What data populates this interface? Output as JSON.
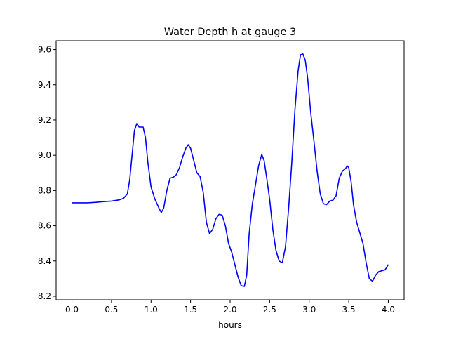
{
  "chart_data": {
    "type": "line",
    "title": "Water Depth h at gauge 3",
    "xlabel": "hours",
    "ylabel": "",
    "xlim": [
      -0.2,
      4.2
    ],
    "ylim": [
      8.18,
      9.65
    ],
    "x_ticks": [
      0.0,
      0.5,
      1.0,
      1.5,
      2.0,
      2.5,
      3.0,
      3.5,
      4.0
    ],
    "x_tick_labels": [
      "0.0",
      "0.5",
      "1.0",
      "1.5",
      "2.0",
      "2.5",
      "3.0",
      "3.5",
      "4.0"
    ],
    "y_ticks": [
      8.2,
      8.4,
      8.6,
      8.8,
      9.0,
      9.2,
      9.4,
      9.6
    ],
    "y_tick_labels": [
      "8.2",
      "8.4",
      "8.6",
      "8.8",
      "9.0",
      "9.2",
      "9.4",
      "9.6"
    ],
    "grid": false,
    "legend": "none",
    "series": [
      {
        "color": "#0000ff",
        "x": [
          0.0,
          0.1,
          0.2,
          0.3,
          0.4,
          0.5,
          0.6,
          0.65,
          0.7,
          0.73,
          0.76,
          0.79,
          0.82,
          0.85,
          0.88,
          0.9,
          0.93,
          0.96,
          1.0,
          1.05,
          1.1,
          1.13,
          1.16,
          1.2,
          1.24,
          1.28,
          1.32,
          1.36,
          1.4,
          1.44,
          1.47,
          1.5,
          1.54,
          1.58,
          1.62,
          1.66,
          1.7,
          1.74,
          1.78,
          1.82,
          1.86,
          1.9,
          1.94,
          1.98,
          2.02,
          2.06,
          2.1,
          2.14,
          2.18,
          2.21,
          2.24,
          2.28,
          2.32,
          2.36,
          2.4,
          2.43,
          2.46,
          2.5,
          2.54,
          2.58,
          2.62,
          2.66,
          2.7,
          2.74,
          2.78,
          2.82,
          2.86,
          2.89,
          2.92,
          2.95,
          2.98,
          3.02,
          3.06,
          3.1,
          3.14,
          3.18,
          3.22,
          3.26,
          3.3,
          3.34,
          3.38,
          3.42,
          3.46,
          3.48,
          3.5,
          3.53,
          3.56,
          3.6,
          3.64,
          3.68,
          3.72,
          3.76,
          3.8,
          3.84,
          3.88,
          3.92,
          3.96,
          4.0
        ],
        "values": [
          8.73,
          8.73,
          8.73,
          8.733,
          8.737,
          8.74,
          8.747,
          8.755,
          8.78,
          8.86,
          9.0,
          9.14,
          9.18,
          9.16,
          9.16,
          9.16,
          9.1,
          8.96,
          8.82,
          8.75,
          8.7,
          8.675,
          8.7,
          8.8,
          8.87,
          8.875,
          8.89,
          8.93,
          8.99,
          9.04,
          9.06,
          9.04,
          8.97,
          8.9,
          8.88,
          8.79,
          8.62,
          8.555,
          8.58,
          8.64,
          8.665,
          8.66,
          8.6,
          8.5,
          8.45,
          8.38,
          8.31,
          8.26,
          8.256,
          8.32,
          8.55,
          8.72,
          8.83,
          8.94,
          9.005,
          8.97,
          8.88,
          8.75,
          8.58,
          8.46,
          8.4,
          8.39,
          8.48,
          8.7,
          8.96,
          9.26,
          9.48,
          9.57,
          9.575,
          9.54,
          9.44,
          9.24,
          9.08,
          8.91,
          8.78,
          8.725,
          8.72,
          8.74,
          8.745,
          8.77,
          8.87,
          8.91,
          8.925,
          8.94,
          8.93,
          8.85,
          8.72,
          8.62,
          8.56,
          8.5,
          8.39,
          8.3,
          8.285,
          8.32,
          8.34,
          8.345,
          8.35,
          8.38
        ]
      }
    ]
  }
}
